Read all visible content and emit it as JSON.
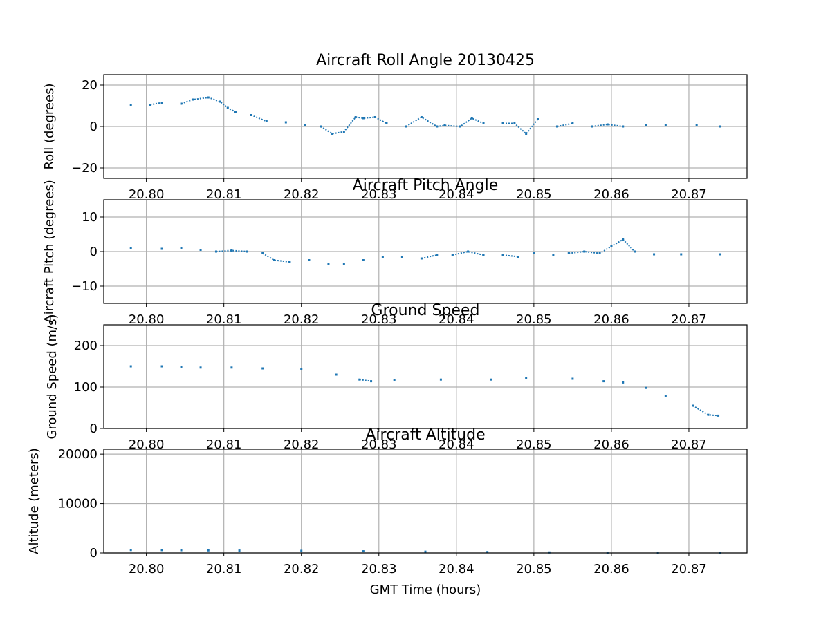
{
  "chart_data": [
    {
      "type": "scatter",
      "title": "Aircraft Roll Angle 20130425",
      "ylabel": "Roll (degrees)",
      "xlabel": "",
      "xlim": [
        20.7945,
        20.8775
      ],
      "ylim": [
        -25,
        25
      ],
      "xticks": [
        "20.80",
        "20.81",
        "20.82",
        "20.83",
        "20.84",
        "20.85",
        "20.86",
        "20.87"
      ],
      "yticks": [
        "−20",
        "0",
        "20"
      ],
      "ytick_values": [
        -20,
        0,
        20
      ],
      "grid": true,
      "color": "#1f77b4",
      "x": [
        20.798,
        20.8005,
        20.802,
        20.8045,
        20.806,
        20.808,
        20.8095,
        20.8105,
        20.8115,
        20.8135,
        20.8155,
        20.818,
        20.8205,
        20.8225,
        20.824,
        20.8255,
        20.827,
        20.828,
        20.8295,
        20.831,
        20.8335,
        20.8355,
        20.8375,
        20.8385,
        20.8405,
        20.842,
        20.8435,
        20.846,
        20.8475,
        20.849,
        20.8505,
        20.853,
        20.855,
        20.8575,
        20.8595,
        20.8615,
        20.8645,
        20.867,
        20.871,
        20.874
      ],
      "y": [
        10.5,
        10.5,
        11.5,
        11,
        13,
        14,
        12,
        9,
        7,
        5.5,
        2.5,
        2,
        0.5,
        0,
        -3.5,
        -2.5,
        4.5,
        4,
        4.5,
        1.5,
        0,
        4.5,
        0,
        0.5,
        0,
        4,
        1.5,
        1.5,
        1.5,
        -3.5,
        3.5,
        0,
        1.5,
        0,
        1,
        0,
        0.5,
        0.5,
        0.5,
        0
      ],
      "series": []
    },
    {
      "type": "scatter",
      "title": "Aircraft Pitch Angle",
      "ylabel": "Aircraft Pitch (degrees)",
      "xlabel": "",
      "xlim": [
        20.7945,
        20.8775
      ],
      "ylim": [
        -15,
        15
      ],
      "xticks": [
        "20.80",
        "20.81",
        "20.82",
        "20.83",
        "20.84",
        "20.85",
        "20.86",
        "20.87"
      ],
      "yticks": [
        "−10",
        "0",
        "10"
      ],
      "ytick_values": [
        -10,
        0,
        10
      ],
      "grid": true,
      "color": "#1f77b4",
      "x": [
        20.798,
        20.802,
        20.8045,
        20.807,
        20.809,
        20.811,
        20.813,
        20.815,
        20.8165,
        20.8185,
        20.821,
        20.8235,
        20.8255,
        20.828,
        20.8305,
        20.833,
        20.8355,
        20.8375,
        20.8395,
        20.8415,
        20.8435,
        20.846,
        20.848,
        20.85,
        20.8525,
        20.8545,
        20.8565,
        20.8585,
        20.86,
        20.8615,
        20.863,
        20.8655,
        20.869,
        20.874
      ],
      "y": [
        1,
        0.8,
        1,
        0.5,
        0,
        0.3,
        0,
        -0.5,
        -2.5,
        -3,
        -2.5,
        -3.5,
        -3.5,
        -2.5,
        -1.5,
        -1.5,
        -2,
        -1,
        -1,
        0,
        -1,
        -1,
        -1.5,
        -0.5,
        -1,
        -0.5,
        0,
        -0.5,
        1.5,
        3.5,
        0,
        -0.8,
        -0.8,
        -0.8
      ],
      "series": []
    },
    {
      "type": "scatter",
      "title": "Ground Speed",
      "ylabel": "Ground Speed (m/s)",
      "xlabel": "",
      "xlim": [
        20.7945,
        20.8775
      ],
      "ylim": [
        0,
        250
      ],
      "xticks": [
        "20.80",
        "20.81",
        "20.82",
        "20.83",
        "20.84",
        "20.85",
        "20.86",
        "20.87"
      ],
      "yticks": [
        "0",
        "100",
        "200"
      ],
      "ytick_values": [
        0,
        100,
        200
      ],
      "grid": true,
      "color": "#1f77b4",
      "x": [
        20.798,
        20.802,
        20.8045,
        20.807,
        20.811,
        20.815,
        20.82,
        20.8245,
        20.8275,
        20.829,
        20.832,
        20.838,
        20.8445,
        20.849,
        20.855,
        20.859,
        20.8615,
        20.8645,
        20.867,
        20.8705,
        20.8725,
        20.8738
      ],
      "y": [
        150,
        150,
        149,
        147,
        147,
        145,
        143,
        130,
        118,
        114,
        116,
        118,
        118,
        121,
        120,
        114,
        111,
        98,
        78,
        55,
        33,
        31
      ],
      "series": []
    },
    {
      "type": "scatter",
      "title": "Aircraft Altitude",
      "ylabel": "Altitude (meters)",
      "xlabel": "GMT Time (hours)",
      "xlim": [
        20.7945,
        20.8775
      ],
      "ylim": [
        0,
        21000
      ],
      "xticks": [
        "20.80",
        "20.81",
        "20.82",
        "20.83",
        "20.84",
        "20.85",
        "20.86",
        "20.87"
      ],
      "yticks": [
        "0",
        "10000",
        "20000"
      ],
      "ytick_values": [
        0,
        10000,
        20000
      ],
      "grid": true,
      "color": "#1f77b4",
      "x": [
        20.798,
        20.802,
        20.8045,
        20.808,
        20.812,
        20.82,
        20.828,
        20.836,
        20.844,
        20.852,
        20.8595,
        20.866,
        20.874
      ],
      "y": [
        600,
        580,
        560,
        520,
        480,
        430,
        340,
        260,
        180,
        100,
        30,
        0,
        0
      ],
      "series": []
    }
  ]
}
